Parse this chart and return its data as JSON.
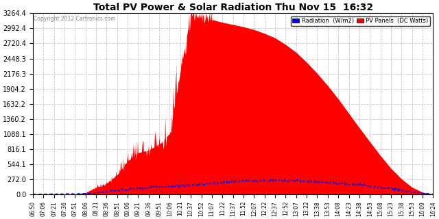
{
  "title": "Total PV Power & Solar Radiation Thu Nov 15  16:32",
  "copyright": "Copyright 2012 Cartronics.com",
  "legend_radiation": "Radiation  (W/m2)",
  "legend_pv": "PV Panels  (DC Watts)",
  "ymax": 3264.4,
  "yticks": [
    0.0,
    272.0,
    544.1,
    816.1,
    1088.1,
    1360.2,
    1632.2,
    1904.2,
    2176.3,
    2448.3,
    2720.4,
    2992.4,
    3264.4
  ],
  "xtick_labels": [
    "06:50",
    "07:06",
    "07:21",
    "07:36",
    "07:51",
    "08:06",
    "08:21",
    "08:36",
    "08:51",
    "09:06",
    "09:21",
    "09:36",
    "09:51",
    "10:06",
    "10:21",
    "10:37",
    "10:52",
    "11:07",
    "11:22",
    "11:37",
    "11:52",
    "12:07",
    "12:22",
    "12:37",
    "12:52",
    "13:07",
    "13:22",
    "13:38",
    "13:53",
    "14:08",
    "14:23",
    "14:38",
    "14:53",
    "15:08",
    "15:23",
    "15:38",
    "15:53",
    "16:09",
    "16:24"
  ],
  "bg_color": "#ffffff",
  "grid_color": "#c8c8c8",
  "pv_color": "#ff0000",
  "radiation_color": "#0000ff",
  "title_color": "#000000"
}
